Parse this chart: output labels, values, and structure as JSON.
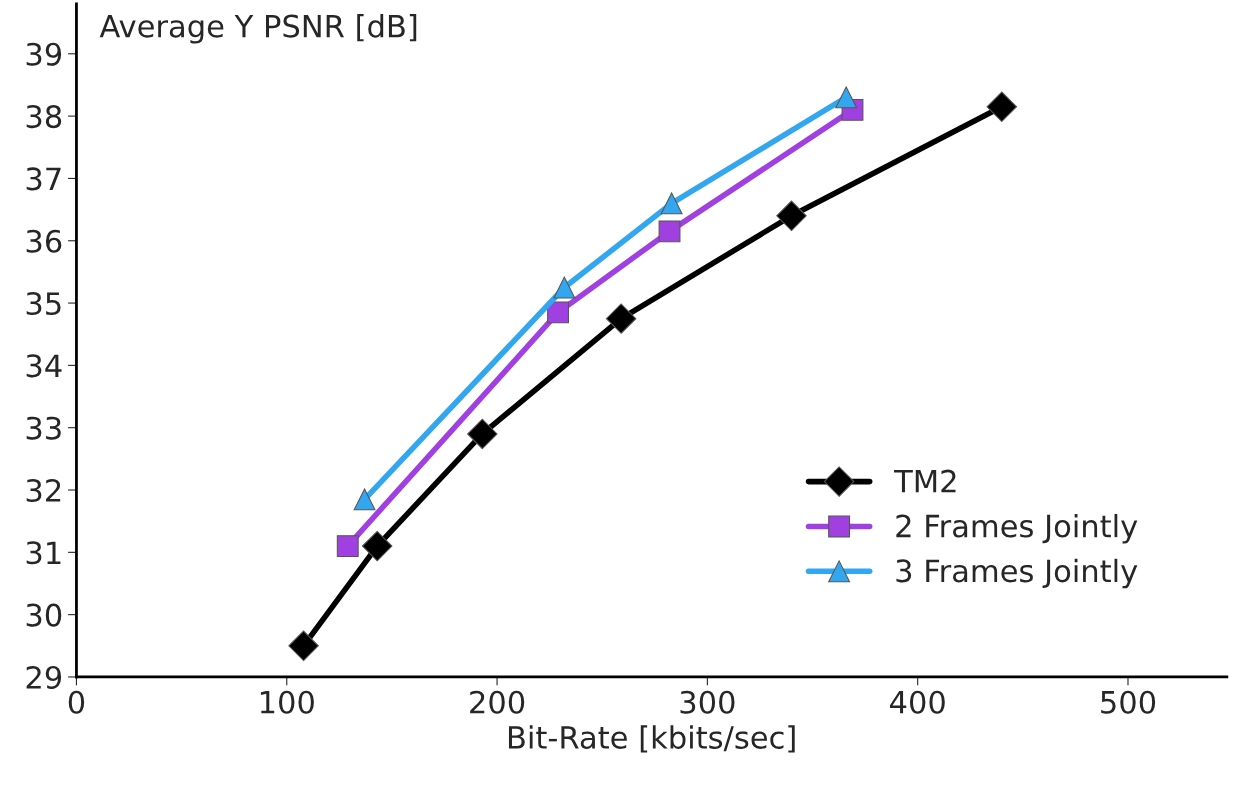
{
  "chart_data": {
    "type": "line",
    "xlabel": "Bit-Rate [kbits/sec]",
    "ylabel": "Average Y PSNR [dB]",
    "xlim": [
      0,
      547
    ],
    "ylim": [
      29,
      39.8
    ],
    "xticks": [
      0,
      100,
      200,
      300,
      400,
      500
    ],
    "yticks": [
      29,
      30,
      31,
      32,
      33,
      34,
      35,
      36,
      37,
      38,
      39
    ],
    "grid": false,
    "legend": "bottom right",
    "series": [
      {
        "name": "TM2",
        "color": "#000000",
        "marker": "diamond",
        "x": [
          108,
          143,
          193,
          259,
          340,
          440
        ],
        "values": [
          29.5,
          31.1,
          32.9,
          34.75,
          36.4,
          38.15
        ]
      },
      {
        "name": "2 Frames Jointly",
        "color": "#a040e0",
        "marker": "square",
        "x": [
          129,
          229,
          282,
          369
        ],
        "values": [
          31.1,
          34.85,
          36.15,
          38.1
        ]
      },
      {
        "name": "3 Frames Jointly",
        "color": "#33a6f0",
        "marker": "triangle",
        "x": [
          137,
          232,
          283,
          366
        ],
        "values": [
          31.85,
          35.25,
          36.6,
          38.3
        ]
      }
    ]
  }
}
